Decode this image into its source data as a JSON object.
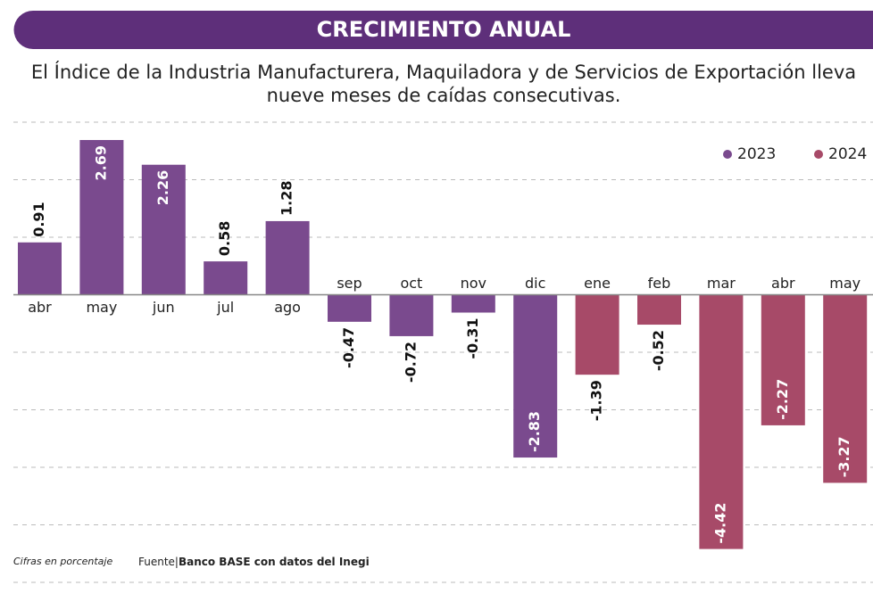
{
  "chart_data": {
    "type": "bar",
    "title": "CRECIMIENTO ANUAL",
    "subtitle": [
      "El Índice de la Industria Manufacturera, Maquiladora y de Servicios de Exportación lleva",
      "nueve meses de caídas consecutivas."
    ],
    "categories": [
      "abr",
      "may",
      "jun",
      "jul",
      "ago",
      "sep",
      "oct",
      "nov",
      "dic",
      "ene",
      "feb",
      "mar",
      "abr",
      "may"
    ],
    "series": [
      {
        "name": "2023",
        "color": "#7a4a8e",
        "values": [
          0.91,
          2.69,
          2.26,
          0.58,
          1.28,
          -0.47,
          -0.72,
          -0.31,
          -2.83,
          null,
          null,
          null,
          null,
          null
        ]
      },
      {
        "name": "2024",
        "color": "#a74a68",
        "values": [
          null,
          null,
          null,
          null,
          null,
          null,
          null,
          null,
          null,
          -1.39,
          -0.52,
          -4.42,
          -2.27,
          -3.27
        ]
      }
    ],
    "ylim": [
      -5,
      3
    ],
    "yticks": [
      -5,
      -4,
      -3,
      -2,
      -1,
      0,
      1,
      2,
      3
    ],
    "grid": true,
    "legend": "top-right",
    "note": "Cifras en porcentaje",
    "source_label": "Fuente|",
    "source": "Banco BASE con datos del Inegi"
  }
}
